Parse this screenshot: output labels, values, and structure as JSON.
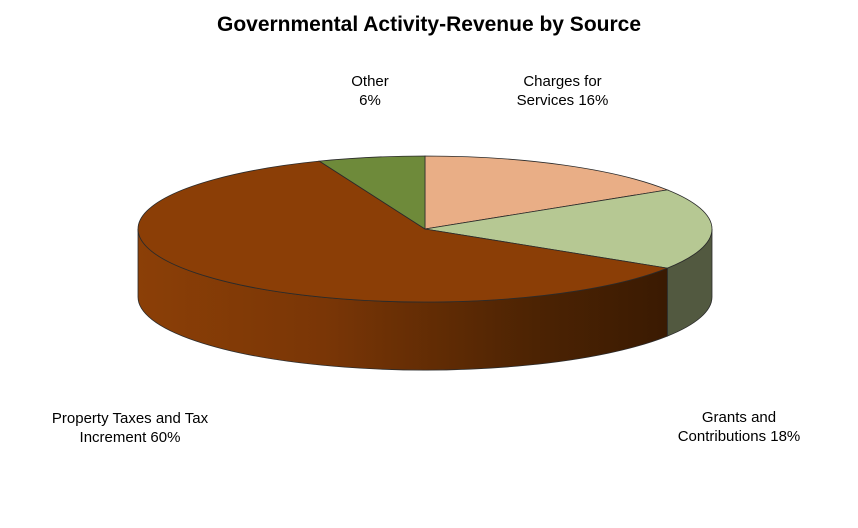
{
  "chart_data": {
    "type": "pie",
    "title": "Governmental Activity-Revenue by Source",
    "slices": [
      {
        "label_line1": "Charges for",
        "label_line2": "Services 16%",
        "value": 16,
        "color": "#e9ae86",
        "side": "#b7866a"
      },
      {
        "label_line1": "Grants and",
        "label_line2": "Contributions 18%",
        "value": 18,
        "color": "#b6c893",
        "side": "#525940"
      },
      {
        "label_line1": "Property Taxes and Tax",
        "label_line2": "Increment 60%",
        "value": 60,
        "color": "#8b3e06",
        "side": "#6d3105"
      },
      {
        "label_line1": "Other",
        "label_line2": "6%",
        "value": 6,
        "color": "#6e8a3a",
        "side": "#4e6428"
      }
    ],
    "legend": "none",
    "style": "3d"
  }
}
